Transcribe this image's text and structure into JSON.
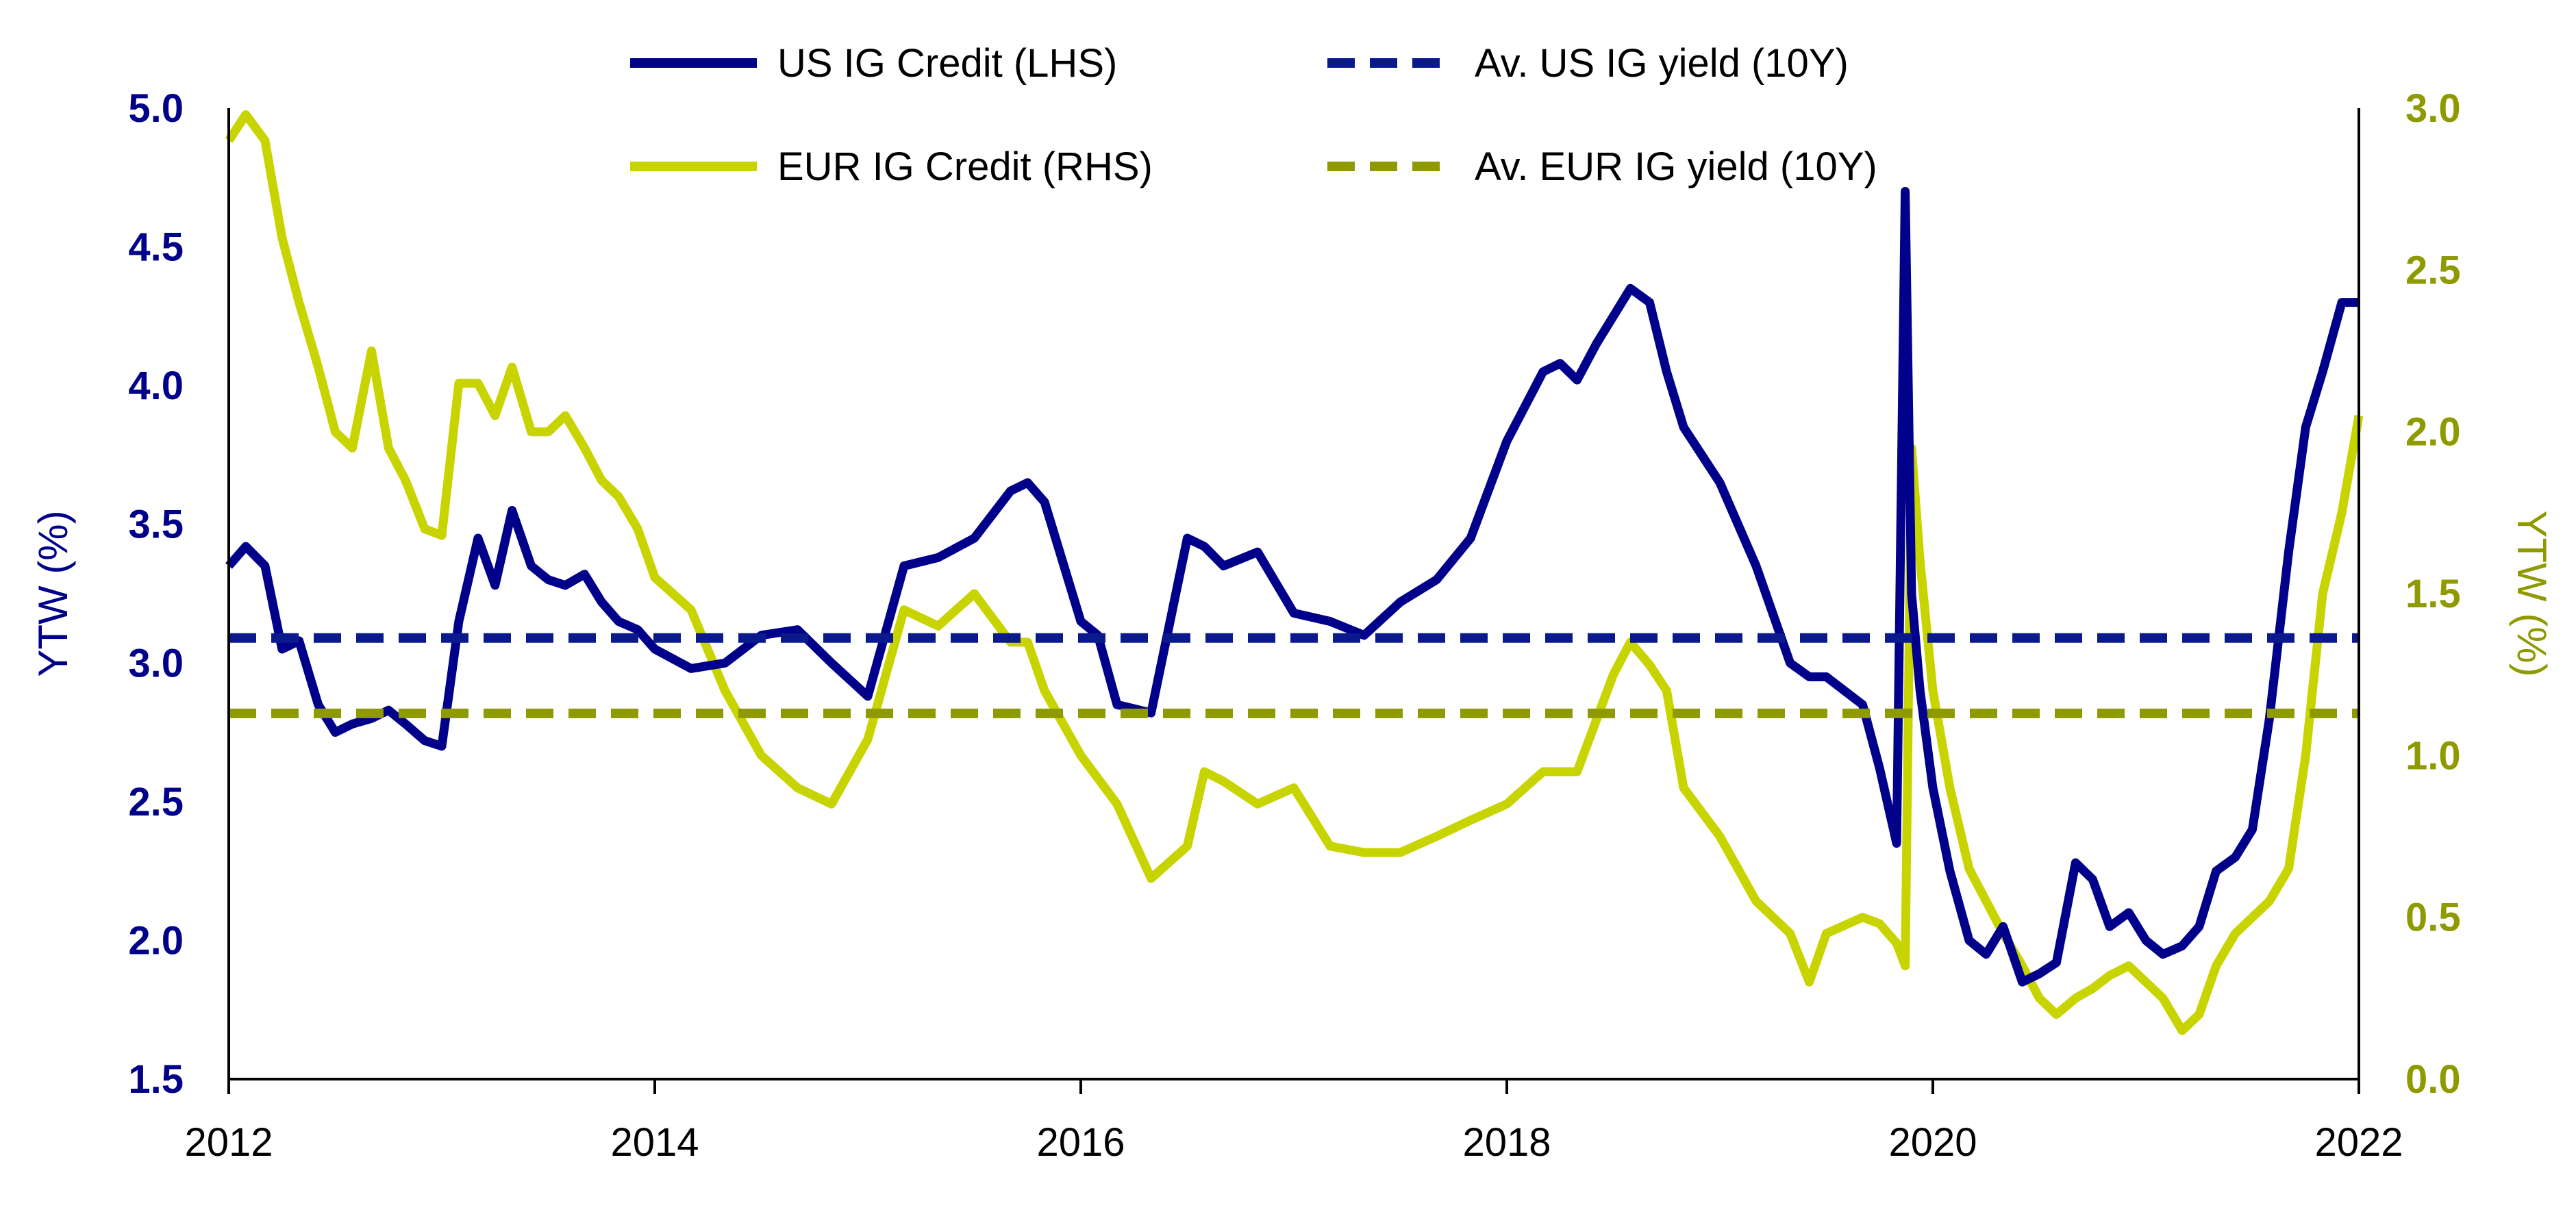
{
  "colors": {
    "us": "#00008B",
    "eur": "#C8D400",
    "us_avg": "#0A1A8C",
    "eur_avg": "#8E9A00",
    "axis": "#000000",
    "left_tick": "#00008B",
    "right_tick": "#8E9A00"
  },
  "chart_data": {
    "type": "line",
    "title": "",
    "xlabel": "",
    "ylabel": "YTW (%)",
    "ylabel_right": "YTW (%)",
    "xlim": [
      2012,
      2022
    ],
    "ylim": [
      1.5,
      5.0
    ],
    "ylim_right": [
      0.0,
      3.0
    ],
    "x_ticks": [
      "2012",
      "2014",
      "2016",
      "2018",
      "2020",
      "2022"
    ],
    "y_ticks": [
      "1.5",
      "2.0",
      "2.5",
      "3.0",
      "3.5",
      "4.0",
      "4.5",
      "5.0"
    ],
    "y_ticks_right": [
      "0.0",
      "0.5",
      "1.0",
      "1.5",
      "2.0",
      "2.5",
      "3.0"
    ],
    "legend": {
      "placement": "top",
      "entries": [
        {
          "label": "US IG Credit (LHS)",
          "style": "solid",
          "color": "us"
        },
        {
          "label": "Av. US IG yield (10Y)",
          "style": "dashed",
          "color": "us_avg"
        },
        {
          "label": "EUR IG Credit (RHS)",
          "style": "solid",
          "color": "eur"
        },
        {
          "label": "Av. EUR IG yield (10Y)",
          "style": "dashed",
          "color": "eur_avg"
        }
      ]
    },
    "series": [
      {
        "name": "US IG Credit (LHS)",
        "axis": "left",
        "style": "solid",
        "color": "us",
        "x": [
          2012.0,
          2012.08,
          2012.17,
          2012.25,
          2012.33,
          2012.42,
          2012.5,
          2012.58,
          2012.67,
          2012.75,
          2012.83,
          2012.92,
          2013.0,
          2013.08,
          2013.17,
          2013.25,
          2013.33,
          2013.42,
          2013.5,
          2013.58,
          2013.67,
          2013.75,
          2013.83,
          2013.92,
          2014.0,
          2014.17,
          2014.33,
          2014.5,
          2014.67,
          2014.83,
          2015.0,
          2015.17,
          2015.33,
          2015.5,
          2015.67,
          2015.75,
          2015.83,
          2016.0,
          2016.08,
          2016.17,
          2016.33,
          2016.5,
          2016.58,
          2016.67,
          2016.83,
          2017.0,
          2017.17,
          2017.33,
          2017.5,
          2017.67,
          2017.83,
          2018.0,
          2018.17,
          2018.25,
          2018.33,
          2018.42,
          2018.5,
          2018.58,
          2018.67,
          2018.75,
          2018.83,
          2019.0,
          2019.17,
          2019.33,
          2019.42,
          2019.5,
          2019.67,
          2019.75,
          2019.83,
          2019.87,
          2019.9,
          2019.94,
          2020.0,
          2020.08,
          2020.17,
          2020.25,
          2020.33,
          2020.42,
          2020.5,
          2020.58,
          2020.67,
          2020.75,
          2020.83,
          2020.92,
          2021.0,
          2021.08,
          2021.17,
          2021.25,
          2021.33,
          2021.42,
          2021.5,
          2021.58,
          2021.67,
          2021.75,
          2021.83,
          2021.92,
          2022.0
        ],
        "values": [
          3.35,
          3.42,
          3.35,
          3.05,
          3.08,
          2.85,
          2.75,
          2.78,
          2.8,
          2.83,
          2.78,
          2.72,
          2.7,
          3.15,
          3.45,
          3.28,
          3.55,
          3.35,
          3.3,
          3.28,
          3.32,
          3.22,
          3.15,
          3.12,
          3.05,
          2.98,
          3.0,
          3.1,
          3.12,
          3.0,
          2.88,
          3.35,
          3.38,
          3.45,
          3.62,
          3.65,
          3.58,
          3.15,
          3.1,
          2.85,
          2.82,
          3.45,
          3.42,
          3.35,
          3.4,
          3.18,
          3.15,
          3.1,
          3.22,
          3.3,
          3.45,
          3.8,
          4.05,
          4.08,
          4.02,
          4.15,
          4.25,
          4.35,
          4.3,
          4.05,
          3.85,
          3.65,
          3.35,
          3.0,
          2.95,
          2.95,
          2.85,
          2.62,
          2.35,
          4.7,
          3.25,
          2.9,
          2.55,
          2.25,
          2.0,
          1.95,
          2.05,
          1.85,
          1.88,
          1.92,
          2.28,
          2.22,
          2.05,
          2.1,
          2.0,
          1.95,
          1.98,
          2.05,
          2.25,
          2.3,
          2.4,
          2.8,
          3.4,
          3.85,
          4.05,
          4.3,
          4.3
        ]
      },
      {
        "name": "EUR IG Credit (RHS)",
        "axis": "right",
        "style": "solid",
        "color": "eur",
        "x": [
          2012.0,
          2012.08,
          2012.17,
          2012.25,
          2012.33,
          2012.42,
          2012.5,
          2012.58,
          2012.67,
          2012.75,
          2012.83,
          2012.92,
          2013.0,
          2013.08,
          2013.17,
          2013.25,
          2013.33,
          2013.42,
          2013.5,
          2013.58,
          2013.67,
          2013.75,
          2013.83,
          2013.92,
          2014.0,
          2014.17,
          2014.33,
          2014.5,
          2014.67,
          2014.83,
          2015.0,
          2015.17,
          2015.33,
          2015.5,
          2015.67,
          2015.75,
          2015.83,
          2016.0,
          2016.17,
          2016.33,
          2016.5,
          2016.58,
          2016.67,
          2016.83,
          2017.0,
          2017.17,
          2017.33,
          2017.5,
          2017.67,
          2017.83,
          2018.0,
          2018.17,
          2018.33,
          2018.5,
          2018.58,
          2018.67,
          2018.75,
          2018.83,
          2019.0,
          2019.17,
          2019.33,
          2019.42,
          2019.5,
          2019.67,
          2019.75,
          2019.83,
          2019.87,
          2019.9,
          2019.94,
          2020.0,
          2020.08,
          2020.17,
          2020.25,
          2020.33,
          2020.42,
          2020.5,
          2020.58,
          2020.67,
          2020.75,
          2020.83,
          2020.92,
          2021.0,
          2021.08,
          2021.17,
          2021.25,
          2021.33,
          2021.42,
          2021.5,
          2021.58,
          2021.67,
          2021.75,
          2021.83,
          2021.92,
          2022.0
        ],
        "values": [
          2.9,
          2.98,
          2.9,
          2.6,
          2.4,
          2.2,
          2.0,
          1.95,
          2.25,
          1.95,
          1.85,
          1.7,
          1.68,
          2.15,
          2.15,
          2.05,
          2.2,
          2.0,
          2.0,
          2.05,
          1.95,
          1.85,
          1.8,
          1.7,
          1.55,
          1.45,
          1.2,
          1.0,
          0.9,
          0.85,
          1.05,
          1.45,
          1.4,
          1.5,
          1.35,
          1.35,
          1.2,
          1.0,
          0.85,
          0.62,
          0.72,
          0.95,
          0.92,
          0.85,
          0.9,
          0.72,
          0.7,
          0.7,
          0.75,
          0.8,
          0.85,
          0.95,
          0.95,
          1.25,
          1.35,
          1.28,
          1.2,
          0.9,
          0.75,
          0.55,
          0.45,
          0.3,
          0.45,
          0.5,
          0.48,
          0.42,
          0.35,
          1.95,
          1.6,
          1.2,
          0.9,
          0.65,
          0.55,
          0.45,
          0.35,
          0.25,
          0.2,
          0.25,
          0.28,
          0.32,
          0.35,
          0.3,
          0.25,
          0.15,
          0.2,
          0.35,
          0.45,
          0.5,
          0.55,
          0.65,
          1.0,
          1.5,
          1.75,
          2.05
        ]
      },
      {
        "name": "Av. US IG yield (10Y)",
        "axis": "left",
        "style": "dashed",
        "color": "us_avg",
        "x": [
          2012.0,
          2022.0
        ],
        "values": [
          3.09,
          3.09
        ]
      },
      {
        "name": "Av. EUR IG yield (10Y)",
        "axis": "right",
        "style": "dashed",
        "color": "eur_avg",
        "x": [
          2012.0,
          2022.0
        ],
        "values": [
          1.13,
          1.13
        ]
      }
    ]
  }
}
